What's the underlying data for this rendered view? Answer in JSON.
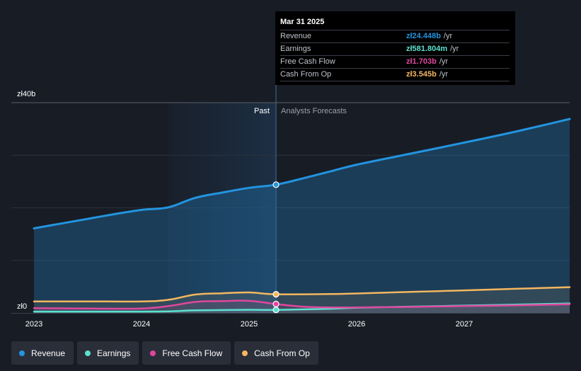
{
  "tooltip": {
    "date": "Mar 31 2025",
    "rows": [
      {
        "label": "Revenue",
        "value": "zł24.448b",
        "unit": "/yr",
        "color": "#2394df"
      },
      {
        "label": "Earnings",
        "value": "zł581.804m",
        "unit": "/yr",
        "color": "#5ce1d0"
      },
      {
        "label": "Free Cash Flow",
        "value": "zł1.703b",
        "unit": "/yr",
        "color": "#e0479e"
      },
      {
        "label": "Cash From Op",
        "value": "zł3.545b",
        "unit": "/yr",
        "color": "#f4b760"
      }
    ]
  },
  "legend": [
    {
      "label": "Revenue",
      "color": "#2394df"
    },
    {
      "label": "Earnings",
      "color": "#5ce1d0"
    },
    {
      "label": "Free Cash Flow",
      "color": "#e0479e"
    },
    {
      "label": "Cash From Op",
      "color": "#f4b760"
    }
  ],
  "chart_data": {
    "type": "line",
    "title": "",
    "xlabel": "",
    "ylabel": "",
    "ylim": [
      0,
      40
    ],
    "xlim": [
      2023.0,
      2027.98
    ],
    "unit": "PLN billions",
    "y_tick_labels": [
      {
        "value": 40,
        "label": "zł40b"
      },
      {
        "value": 0,
        "label": "zł0"
      }
    ],
    "x_tick_labels": [
      {
        "value": 2023,
        "label": "2023"
      },
      {
        "value": 2024,
        "label": "2024"
      },
      {
        "value": 2025,
        "label": "2025"
      },
      {
        "value": 2026,
        "label": "2026"
      },
      {
        "value": 2027,
        "label": "2027"
      }
    ],
    "past_label": "Past",
    "forecast_label": "Analysts Forecasts",
    "past_shade_start": 2024.25,
    "divider_x": 2025.25,
    "series": [
      {
        "name": "Revenue",
        "color": "#2394df",
        "points": [
          [
            2023.0,
            16.1
          ],
          [
            2023.25,
            17.0
          ],
          [
            2023.5,
            17.9
          ],
          [
            2023.75,
            18.8
          ],
          [
            2024.0,
            19.6
          ],
          [
            2024.25,
            20.1
          ],
          [
            2024.5,
            21.9
          ],
          [
            2024.75,
            22.9
          ],
          [
            2025.0,
            23.8
          ],
          [
            2025.25,
            24.4
          ],
          [
            2025.5,
            25.6
          ],
          [
            2025.75,
            26.9
          ],
          [
            2026.0,
            28.2
          ],
          [
            2026.5,
            30.3
          ],
          [
            2027.0,
            32.4
          ],
          [
            2027.5,
            34.6
          ],
          [
            2027.98,
            36.9
          ]
        ],
        "marker_x": 2025.25
      },
      {
        "name": "Earnings",
        "color": "#5ce1d0",
        "points": [
          [
            2023.0,
            0.25
          ],
          [
            2023.5,
            0.25
          ],
          [
            2024.0,
            0.25
          ],
          [
            2024.25,
            0.3
          ],
          [
            2024.5,
            0.5
          ],
          [
            2024.75,
            0.55
          ],
          [
            2025.0,
            0.6
          ],
          [
            2025.25,
            0.58
          ],
          [
            2025.75,
            0.8
          ],
          [
            2026.0,
            1.0
          ],
          [
            2026.5,
            1.2
          ],
          [
            2027.0,
            1.4
          ],
          [
            2027.5,
            1.6
          ],
          [
            2027.98,
            1.8
          ]
        ],
        "marker_x": 2025.25
      },
      {
        "name": "Free Cash Flow",
        "color": "#e0479e",
        "points": [
          [
            2023.0,
            0.9
          ],
          [
            2023.5,
            0.85
          ],
          [
            2024.0,
            0.85
          ],
          [
            2024.25,
            1.3
          ],
          [
            2024.5,
            2.1
          ],
          [
            2024.75,
            2.25
          ],
          [
            2025.0,
            2.3
          ],
          [
            2025.25,
            1.7
          ],
          [
            2025.5,
            1.2
          ],
          [
            2025.75,
            1.05
          ],
          [
            2026.0,
            1.05
          ],
          [
            2026.5,
            1.15
          ],
          [
            2027.0,
            1.3
          ],
          [
            2027.5,
            1.45
          ],
          [
            2027.98,
            1.65
          ]
        ],
        "marker_x": 2025.25
      },
      {
        "name": "Cash From Op",
        "color": "#f4b760",
        "points": [
          [
            2023.0,
            2.2
          ],
          [
            2023.5,
            2.2
          ],
          [
            2024.0,
            2.2
          ],
          [
            2024.25,
            2.5
          ],
          [
            2024.5,
            3.5
          ],
          [
            2024.75,
            3.75
          ],
          [
            2025.0,
            3.9
          ],
          [
            2025.25,
            3.55
          ],
          [
            2025.75,
            3.6
          ],
          [
            2026.0,
            3.7
          ],
          [
            2026.5,
            4.0
          ],
          [
            2027.0,
            4.3
          ],
          [
            2027.5,
            4.6
          ],
          [
            2027.98,
            4.9
          ]
        ],
        "marker_x": 2025.25
      }
    ]
  }
}
